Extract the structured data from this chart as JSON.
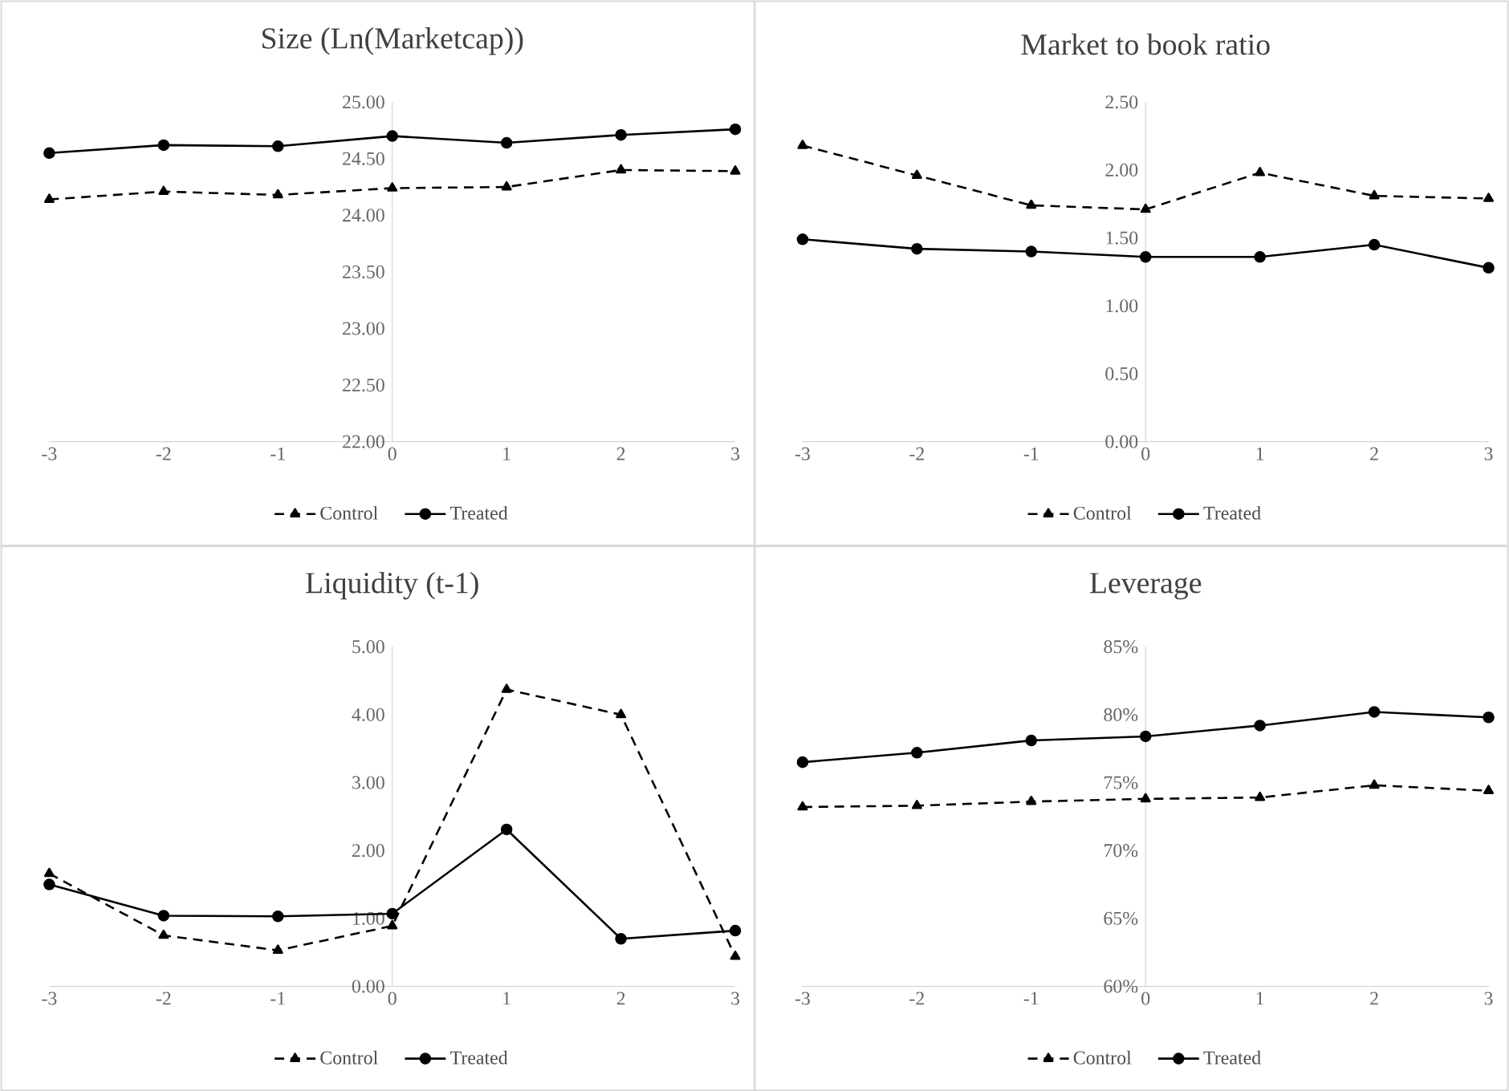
{
  "chart_data": [
    {
      "type": "line",
      "title": "Size (Ln(Marketcap))",
      "x": [
        -3,
        -2,
        -1,
        0,
        1,
        2,
        3
      ],
      "xlim": [
        -3,
        3
      ],
      "xticks": [
        -3,
        -2,
        -1,
        0,
        1,
        2,
        3
      ],
      "ylim": [
        22,
        25
      ],
      "yticks": [
        {
          "value": 22,
          "label": "22.00"
        },
        {
          "value": 22.5,
          "label": "22.50"
        },
        {
          "value": 23,
          "label": "23.00"
        },
        {
          "value": 23.5,
          "label": "23.50"
        },
        {
          "value": 24,
          "label": "24.00"
        },
        {
          "value": 24.5,
          "label": "24.50"
        },
        {
          "value": 25,
          "label": "25.00"
        }
      ],
      "legend": "bottom",
      "series": [
        {
          "name": "Control",
          "color": "#000000",
          "marker": "triangle",
          "line_style": "dashed",
          "values": [
            24.14,
            24.21,
            24.18,
            24.24,
            24.25,
            24.4,
            24.39
          ]
        },
        {
          "name": "Treated",
          "color": "#000000",
          "marker": "circle",
          "line_style": "solid",
          "values": [
            24.55,
            24.62,
            24.61,
            24.7,
            24.64,
            24.71,
            24.76
          ]
        }
      ]
    },
    {
      "type": "line",
      "title": "Market to book ratio",
      "x": [
        -3,
        -2,
        -1,
        0,
        1,
        2,
        3
      ],
      "xlim": [
        -3,
        3
      ],
      "xticks": [
        -3,
        -2,
        -1,
        0,
        1,
        2,
        3
      ],
      "ylim": [
        0,
        2.5
      ],
      "yticks": [
        {
          "value": 0,
          "label": "0.00"
        },
        {
          "value": 0.5,
          "label": "0.50"
        },
        {
          "value": 1,
          "label": "1.00"
        },
        {
          "value": 1.5,
          "label": "1.50"
        },
        {
          "value": 2,
          "label": "2.00"
        },
        {
          "value": 2.5,
          "label": "2.50"
        }
      ],
      "legend": "bottom",
      "series": [
        {
          "name": "Control",
          "color": "#000000",
          "marker": "triangle",
          "line_style": "dashed",
          "values": [
            2.18,
            1.96,
            1.74,
            1.71,
            1.98,
            1.81,
            1.79
          ]
        },
        {
          "name": "Treated",
          "color": "#000000",
          "marker": "circle",
          "line_style": "solid",
          "values": [
            1.49,
            1.42,
            1.4,
            1.36,
            1.36,
            1.45,
            1.28
          ]
        }
      ]
    },
    {
      "type": "line",
      "title": "Liquidity  (t-1)",
      "x": [
        -3,
        -2,
        -1,
        0,
        1,
        2,
        3
      ],
      "xlim": [
        -3,
        3
      ],
      "xticks": [
        -3,
        -2,
        -1,
        0,
        1,
        2,
        3
      ],
      "ylim": [
        0,
        5
      ],
      "yticks": [
        {
          "value": 0,
          "label": "0.00"
        },
        {
          "value": 1,
          "label": "1.00"
        },
        {
          "value": 2,
          "label": "2.00"
        },
        {
          "value": 3,
          "label": "3.00"
        },
        {
          "value": 4,
          "label": "4.00"
        },
        {
          "value": 5,
          "label": "5.00"
        }
      ],
      "legend": "bottom",
      "series": [
        {
          "name": "Control",
          "color": "#000000",
          "marker": "triangle",
          "line_style": "dashed",
          "values": [
            1.66,
            0.75,
            0.53,
            0.89,
            4.37,
            4.0,
            0.44
          ]
        },
        {
          "name": "Treated",
          "color": "#000000",
          "marker": "circle",
          "line_style": "solid",
          "values": [
            1.5,
            1.04,
            1.03,
            1.07,
            2.31,
            0.7,
            0.82
          ]
        }
      ]
    },
    {
      "type": "line",
      "title": "Leverage",
      "x": [
        -3,
        -2,
        -1,
        0,
        1,
        2,
        3
      ],
      "xlim": [
        -3,
        3
      ],
      "xticks": [
        -3,
        -2,
        -1,
        0,
        1,
        2,
        3
      ],
      "ylim": [
        60,
        85
      ],
      "yticks": [
        {
          "value": 60,
          "label": "60%"
        },
        {
          "value": 65,
          "label": "65%"
        },
        {
          "value": 70,
          "label": "70%"
        },
        {
          "value": 75,
          "label": "75%"
        },
        {
          "value": 80,
          "label": "80%"
        },
        {
          "value": 85,
          "label": "85%"
        }
      ],
      "legend": "bottom",
      "series": [
        {
          "name": "Control",
          "color": "#000000",
          "marker": "triangle",
          "line_style": "dashed",
          "values": [
            73.2,
            73.3,
            73.6,
            73.8,
            73.9,
            74.8,
            74.4
          ]
        },
        {
          "name": "Treated",
          "color": "#000000",
          "marker": "circle",
          "line_style": "solid",
          "values": [
            76.5,
            77.2,
            78.1,
            78.4,
            79.2,
            80.2,
            79.8
          ]
        }
      ]
    }
  ]
}
